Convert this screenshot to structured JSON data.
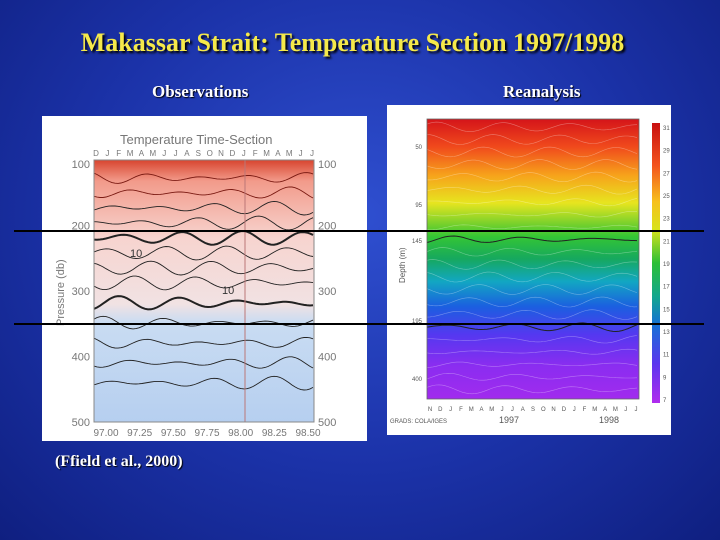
{
  "slide": {
    "title": "Makassar Strait: Temperature Section 1997/1998",
    "left_label": "Observations",
    "right_label": "Reanalysis",
    "citation": "(Ffield et al., 2000)"
  },
  "chart_data": [
    {
      "type": "heatmap",
      "title": "Temperature Time-Section",
      "ylabel": "Pressure (db)",
      "x_ticks": [
        "97.00",
        "97.25",
        "97.50",
        "97.75",
        "98.00",
        "98.25",
        "98.50"
      ],
      "y_ticks": [
        100,
        200,
        300,
        400,
        500
      ],
      "ylim": [
        500,
        100
      ],
      "month_labels": [
        "D",
        "J",
        "F",
        "M",
        "A",
        "M",
        "J",
        "J",
        "A",
        "S",
        "O",
        "N",
        "D",
        "J",
        "F",
        "M",
        "A",
        "M",
        "J",
        "J"
      ],
      "contour_labels": [
        "10",
        "10"
      ],
      "colors": {
        "warm": "#e8432e",
        "mid": "#f5c5c0",
        "cool": "#b9d3f0"
      }
    },
    {
      "type": "heatmap",
      "ylabel": "Depth (m)",
      "y_ticks": [
        "50",
        "95",
        "145",
        "195",
        "400"
      ],
      "month_labels": [
        "N",
        "D",
        "J",
        "F",
        "M",
        "A",
        "M",
        "J",
        "J",
        "A",
        "S",
        "O",
        "N",
        "D",
        "J",
        "F",
        "M",
        "A",
        "M",
        "J",
        "J"
      ],
      "year_labels": [
        "1997",
        "1998"
      ],
      "colorbar_ticks": [
        "31",
        "29",
        "27",
        "25",
        "23",
        "21",
        "19",
        "17",
        "15",
        "13",
        "11",
        "9",
        "7"
      ],
      "source_note": "GRADS: COLA/IGES"
    }
  ]
}
